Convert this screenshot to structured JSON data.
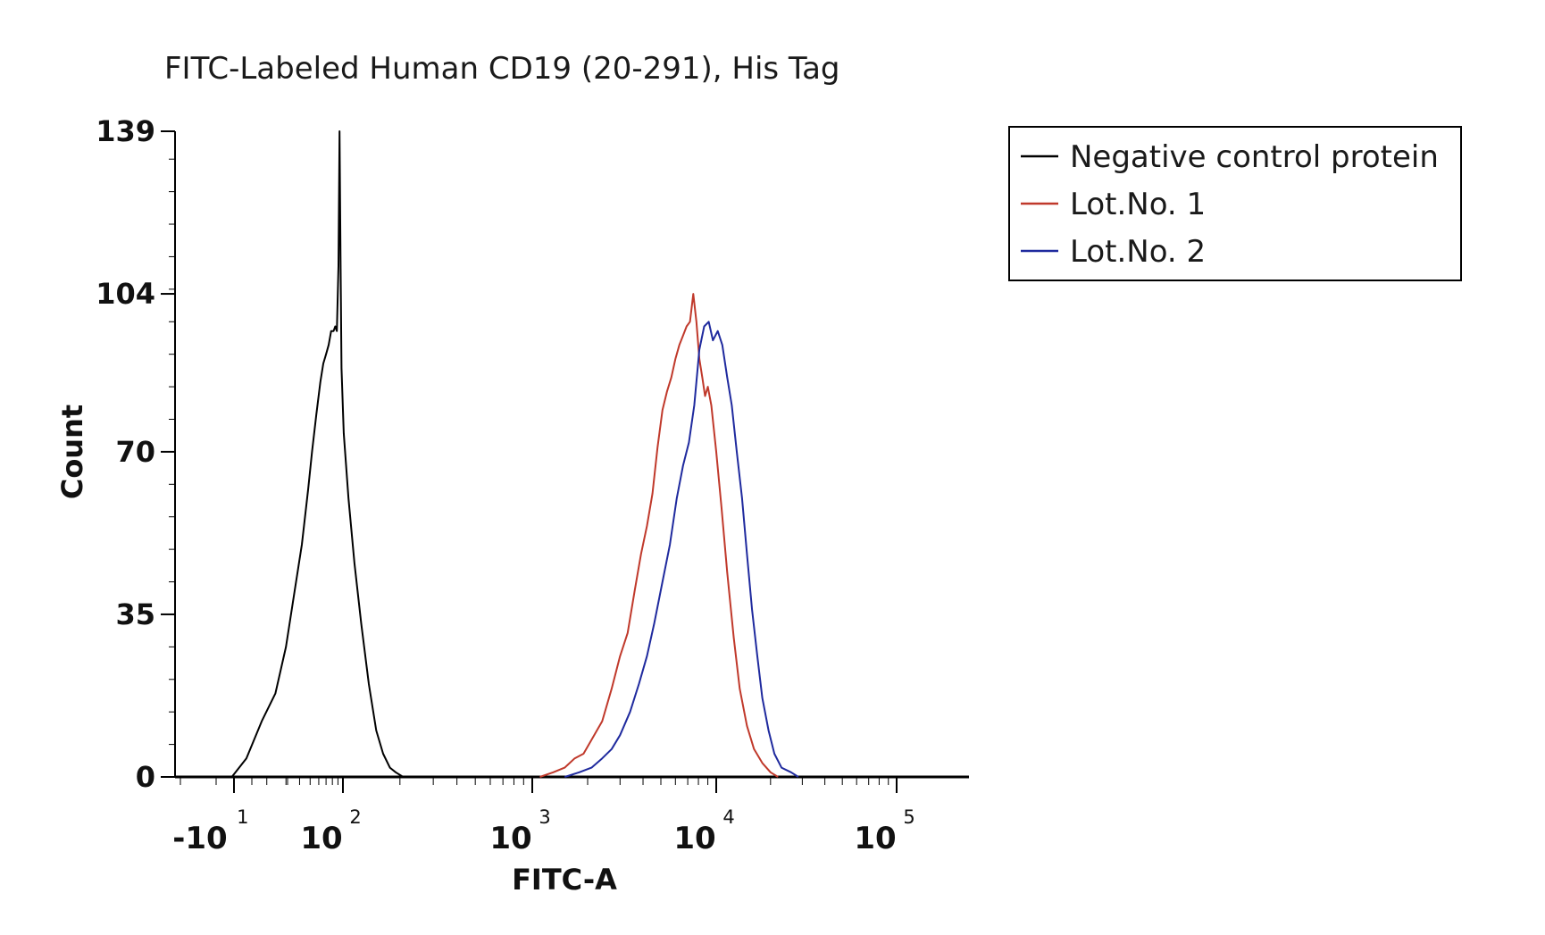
{
  "chart_data": {
    "type": "line",
    "title": "FITC-Labeled Human CD19 (20-291), His Tag",
    "xlabel": "FITC-A",
    "ylabel": "Count",
    "ylim": [
      0,
      139
    ],
    "yticks": [
      "0",
      "35",
      "70",
      "104",
      "139"
    ],
    "xticks": [
      {
        "base": "-10",
        "exp": "1"
      },
      {
        "base": "10",
        "exp": "2"
      },
      {
        "base": "10",
        "exp": "3"
      },
      {
        "base": "10",
        "exp": "4"
      },
      {
        "base": "10",
        "exp": "5"
      }
    ],
    "legend_position": "top-right",
    "series": [
      {
        "name": "Negative control protein",
        "color": "#000000",
        "points": [
          [
            8,
            0
          ],
          [
            13,
            4
          ],
          [
            18,
            12
          ],
          [
            24,
            18
          ],
          [
            30,
            28
          ],
          [
            36,
            40
          ],
          [
            42,
            50
          ],
          [
            48,
            62
          ],
          [
            52,
            70
          ],
          [
            57,
            78
          ],
          [
            62,
            85
          ],
          [
            66,
            89
          ],
          [
            70,
            91
          ],
          [
            74,
            93
          ],
          [
            78,
            96
          ],
          [
            82,
            96
          ],
          [
            85,
            97
          ],
          [
            88,
            96
          ],
          [
            91,
            110
          ],
          [
            93,
            139
          ],
          [
            95,
            112
          ],
          [
            97,
            88
          ],
          [
            101,
            74
          ],
          [
            107,
            60
          ],
          [
            115,
            46
          ],
          [
            125,
            33
          ],
          [
            137,
            20
          ],
          [
            150,
            10
          ],
          [
            163,
            5
          ],
          [
            177,
            2
          ],
          [
            190,
            1
          ],
          [
            208,
            0
          ]
        ]
      },
      {
        "name": "Lot.No. 1",
        "color": "#c0392b",
        "points": [
          [
            1100,
            0
          ],
          [
            1300,
            1
          ],
          [
            1500,
            2
          ],
          [
            1700,
            4
          ],
          [
            1900,
            5
          ],
          [
            2100,
            8
          ],
          [
            2400,
            12
          ],
          [
            2700,
            19
          ],
          [
            3000,
            26
          ],
          [
            3300,
            31
          ],
          [
            3600,
            40
          ],
          [
            3900,
            48
          ],
          [
            4200,
            54
          ],
          [
            4500,
            61
          ],
          [
            4800,
            71
          ],
          [
            5100,
            79
          ],
          [
            5400,
            83
          ],
          [
            5700,
            86
          ],
          [
            6000,
            90
          ],
          [
            6300,
            93
          ],
          [
            6600,
            95
          ],
          [
            6900,
            97
          ],
          [
            7200,
            98
          ],
          [
            7500,
            104
          ],
          [
            7800,
            98
          ],
          [
            8100,
            90
          ],
          [
            8400,
            86
          ],
          [
            8700,
            82
          ],
          [
            9000,
            84
          ],
          [
            9400,
            80
          ],
          [
            10000,
            70
          ],
          [
            10700,
            58
          ],
          [
            11500,
            44
          ],
          [
            12500,
            30
          ],
          [
            13500,
            19
          ],
          [
            14800,
            11
          ],
          [
            16200,
            6
          ],
          [
            18000,
            3
          ],
          [
            20000,
            1
          ],
          [
            22000,
            0
          ]
        ]
      },
      {
        "name": "Lot.No. 2",
        "color": "#1f2a9e",
        "points": [
          [
            1500,
            0
          ],
          [
            1800,
            1
          ],
          [
            2100,
            2
          ],
          [
            2400,
            4
          ],
          [
            2700,
            6
          ],
          [
            3000,
            9
          ],
          [
            3400,
            14
          ],
          [
            3800,
            20
          ],
          [
            4200,
            26
          ],
          [
            4600,
            33
          ],
          [
            5100,
            42
          ],
          [
            5600,
            50
          ],
          [
            6100,
            60
          ],
          [
            6600,
            67
          ],
          [
            7100,
            72
          ],
          [
            7600,
            80
          ],
          [
            8100,
            92
          ],
          [
            8600,
            97
          ],
          [
            9100,
            98
          ],
          [
            9600,
            94
          ],
          [
            10200,
            96
          ],
          [
            10800,
            93
          ],
          [
            11500,
            86
          ],
          [
            12200,
            80
          ],
          [
            13000,
            70
          ],
          [
            13900,
            60
          ],
          [
            14800,
            48
          ],
          [
            15800,
            36
          ],
          [
            16900,
            26
          ],
          [
            18000,
            17
          ],
          [
            19500,
            10
          ],
          [
            21000,
            5
          ],
          [
            23000,
            2
          ],
          [
            26000,
            1
          ],
          [
            28500,
            0
          ]
        ]
      }
    ]
  }
}
